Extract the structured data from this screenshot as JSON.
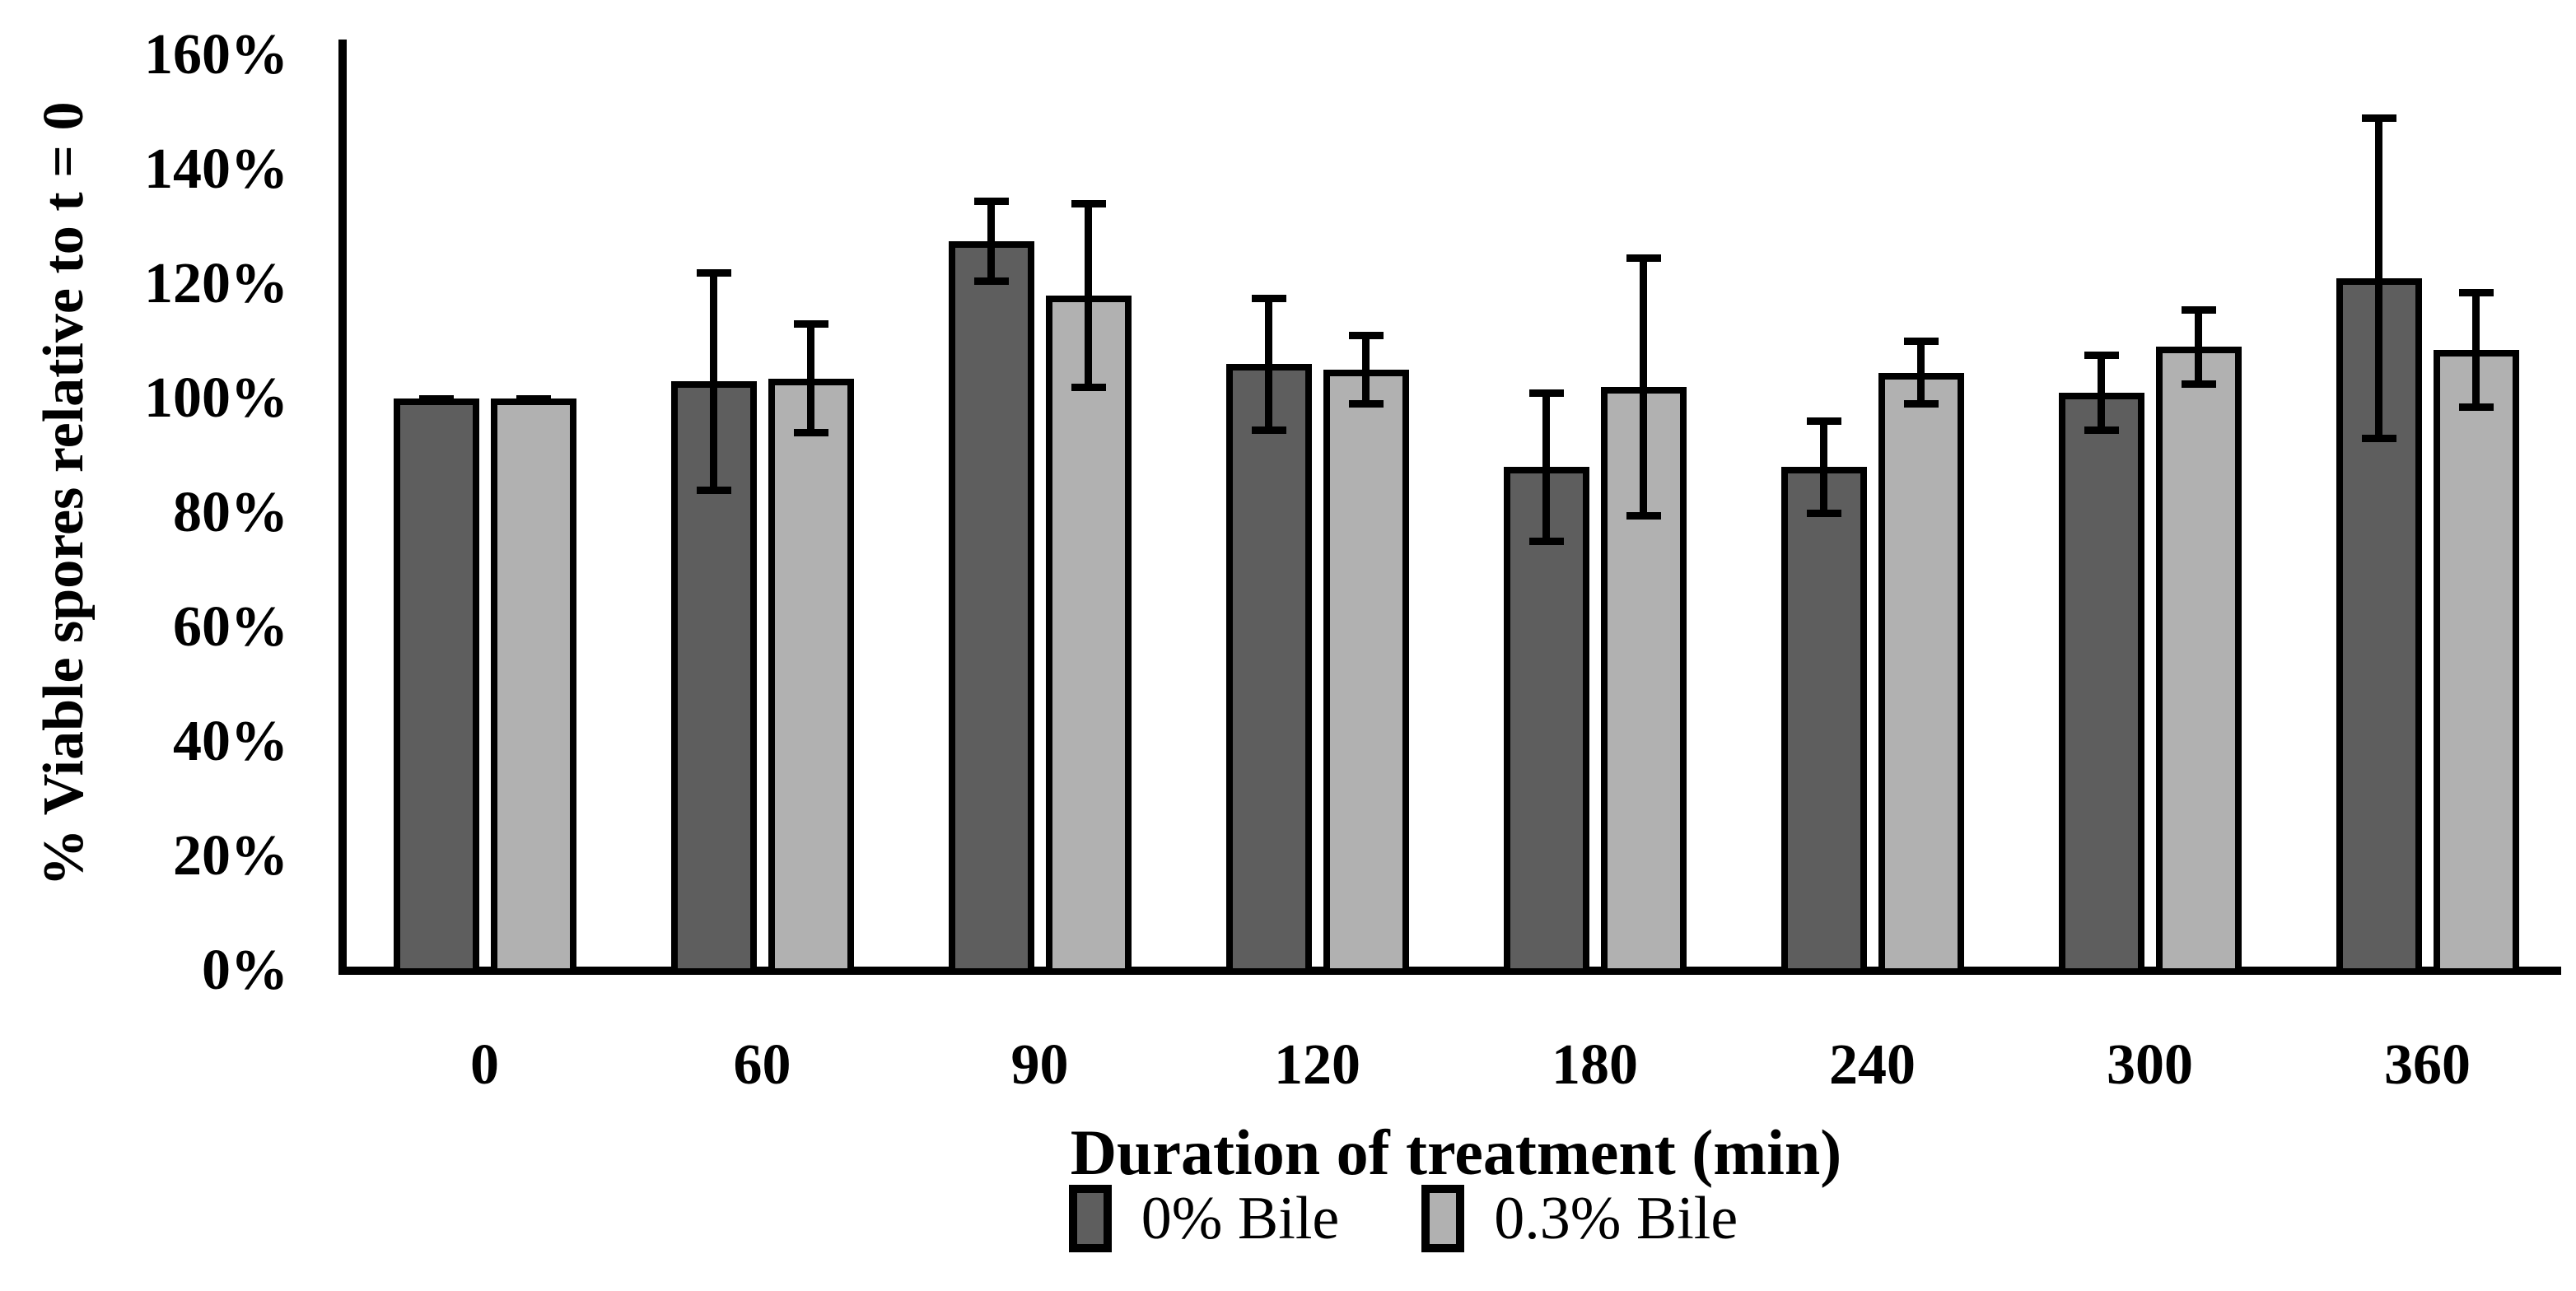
{
  "chart_data": {
    "type": "bar",
    "title": "",
    "xlabel": "Duration of treatment (min)",
    "ylabel": "% Viable spores relative to t = 0",
    "categories": [
      "0",
      "60",
      "90",
      "120",
      "180",
      "240",
      "300",
      "360"
    ],
    "series": [
      {
        "name": "0% Bile",
        "color": "#5e5e5e",
        "values": [
          100,
          103,
          127.5,
          106,
          88,
          88,
          101,
          121
        ],
        "errors": [
          0,
          19,
          7,
          11.5,
          13,
          8,
          6.5,
          28
        ]
      },
      {
        "name": "0.3% Bile",
        "color": "#b1b1b1",
        "values": [
          100,
          103.5,
          118,
          105,
          102,
          104.5,
          109,
          108.5
        ],
        "errors": [
          0,
          9.5,
          16,
          6,
          22.5,
          5.5,
          6.5,
          10
        ]
      }
    ],
    "y_ticks": [
      "0%",
      "20%",
      "40%",
      "60%",
      "80%",
      "100%",
      "120%",
      "140%",
      "160%"
    ],
    "ylim": [
      0,
      160
    ],
    "y_tick_step": 20,
    "grid": false,
    "legend_position": "bottom",
    "bar_border_color": "#000000",
    "error_bar_color": "#000000",
    "background_color": "#ffffff"
  }
}
